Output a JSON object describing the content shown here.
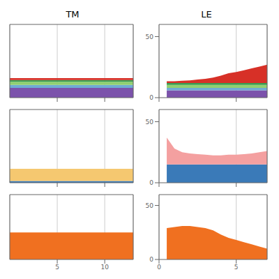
{
  "chart_data": [
    {
      "type": "area",
      "stacked": true,
      "title": "TM",
      "x": [
        0,
        1,
        2,
        3,
        4,
        5,
        6,
        7,
        8,
        9,
        10,
        11,
        12,
        13
      ],
      "series": [
        {
          "color": "#7b52ab",
          "values": [
            8,
            8,
            8,
            8,
            8,
            8,
            8,
            8,
            8,
            8,
            8,
            8,
            8,
            8
          ]
        },
        {
          "color": "#6fabd4",
          "values": [
            2.5,
            2.5,
            2.5,
            2.5,
            2.5,
            2.5,
            2.5,
            2.5,
            2.5,
            2.5,
            2.5,
            2.5,
            2.5,
            2.5
          ]
        },
        {
          "color": "#90d070",
          "values": [
            2.5,
            2.5,
            2.5,
            2.5,
            2.5,
            2.5,
            2.5,
            2.5,
            2.5,
            2.5,
            2.5,
            2.5,
            2.5,
            2.5
          ]
        },
        {
          "color": "#3a9c50",
          "values": [
            1.5,
            1.5,
            1.5,
            1.5,
            1.5,
            1.5,
            1.5,
            1.5,
            1.5,
            1.5,
            1.5,
            1.5,
            1.5,
            1.5
          ]
        },
        {
          "color": "#d73027",
          "values": [
            1.5,
            1.5,
            1.5,
            1.5,
            1.5,
            1.5,
            1.5,
            1.5,
            1.5,
            1.5,
            1.5,
            1.5,
            1.5,
            1.5
          ]
        }
      ],
      "xlim": [
        0,
        13
      ],
      "ylim": [
        0,
        60
      ],
      "xticks": [
        5,
        10
      ],
      "yticks": [],
      "grid": "x",
      "tick_labels": false
    },
    {
      "type": "area",
      "stacked": true,
      "title": "LE",
      "x": [
        0.5,
        1,
        1.5,
        2,
        2.5,
        3,
        3.5,
        4,
        4.5,
        5,
        5.5,
        6,
        6.5,
        7
      ],
      "series": [
        {
          "color": "#7b52ab",
          "values": [
            6,
            6,
            6,
            6,
            6,
            6,
            6,
            6,
            6,
            6,
            6,
            6,
            6,
            6
          ]
        },
        {
          "color": "#6fabd4",
          "values": [
            2,
            2,
            2,
            2,
            2,
            2,
            2,
            2,
            2,
            2,
            2,
            2,
            2,
            2
          ]
        },
        {
          "color": "#90d070",
          "values": [
            2.5,
            2.5,
            2.5,
            2.5,
            2.5,
            2.5,
            2.5,
            2.5,
            2.5,
            2.5,
            2.5,
            2.5,
            2.5,
            2.5
          ]
        },
        {
          "color": "#3a9c50",
          "values": [
            1.5,
            1.5,
            1.5,
            1.5,
            1.5,
            1.5,
            1.5,
            1.5,
            1.5,
            1.5,
            1.5,
            1.5,
            1.5,
            1.5
          ]
        },
        {
          "color": "#d73027",
          "values": [
            1.5,
            1.5,
            1.8,
            2.2,
            2.8,
            3.5,
            4.5,
            6,
            8,
            9,
            10.5,
            12,
            13.5,
            15
          ]
        }
      ],
      "xlim": [
        0,
        7
      ],
      "ylim": [
        0,
        60
      ],
      "xticks": [
        0,
        5
      ],
      "yticks": [
        0,
        50
      ],
      "grid": "x",
      "tick_labels": "y"
    },
    {
      "type": "area",
      "stacked": true,
      "x": [
        0,
        1,
        2,
        3,
        4,
        5,
        6,
        7,
        8,
        9,
        10,
        11,
        12,
        13
      ],
      "series": [
        {
          "color": "#3a7ab8",
          "values": [
            1.5,
            1.5,
            1.5,
            1.5,
            1.5,
            1.5,
            1.5,
            1.5,
            1.5,
            1.5,
            1.5,
            1.5,
            1.5,
            1.5
          ]
        },
        {
          "color": "#f5c870",
          "values": [
            10,
            10,
            10,
            10,
            10,
            10,
            10,
            10,
            10,
            10,
            10,
            10,
            10,
            10
          ]
        }
      ],
      "xlim": [
        0,
        13
      ],
      "ylim": [
        0,
        60
      ],
      "xticks": [
        5,
        10
      ],
      "yticks": [],
      "grid": "x",
      "tick_labels": false
    },
    {
      "type": "area",
      "stacked": true,
      "x": [
        0.5,
        1,
        1.5,
        2,
        2.5,
        3,
        3.5,
        4,
        4.5,
        5,
        5.5,
        6,
        6.5,
        7
      ],
      "series": [
        {
          "color": "#3a7ab8",
          "values": [
            15,
            15,
            15,
            15,
            15,
            15,
            15,
            15,
            15,
            15,
            15,
            15,
            15,
            15
          ]
        },
        {
          "color": "#f4a0a0",
          "values": [
            22,
            13,
            10,
            9,
            8.5,
            8,
            7.5,
            7.5,
            8,
            8,
            8.5,
            9,
            10,
            11
          ]
        }
      ],
      "xlim": [
        0,
        7
      ],
      "ylim": [
        0,
        60
      ],
      "xticks": [
        0,
        5
      ],
      "yticks": [
        0,
        50
      ],
      "grid": "x",
      "tick_labels": "y"
    },
    {
      "type": "area",
      "stacked": true,
      "x": [
        0,
        1,
        2,
        3,
        4,
        5,
        6,
        7,
        8,
        9,
        10,
        11,
        12,
        13
      ],
      "series": [
        {
          "color": "#f07020",
          "values": [
            25,
            25,
            25,
            25,
            25,
            25,
            25,
            25,
            25,
            25,
            25,
            25,
            25,
            25
          ]
        }
      ],
      "xlim": [
        0,
        13
      ],
      "ylim": [
        0,
        60
      ],
      "xticks": [
        5,
        10
      ],
      "yticks": [],
      "grid": "x",
      "tick_labels": "x"
    },
    {
      "type": "area",
      "stacked": true,
      "x": [
        0.5,
        1,
        1.5,
        2,
        2.5,
        3,
        3.5,
        4,
        4.5,
        5,
        5.5,
        6,
        6.5,
        7
      ],
      "series": [
        {
          "color": "#f07020",
          "values": [
            29,
            30,
            31,
            31,
            30,
            29,
            27,
            23,
            20,
            18,
            16,
            14,
            12,
            10
          ]
        }
      ],
      "xlim": [
        0,
        7
      ],
      "ylim": [
        0,
        60
      ],
      "xticks": [
        0,
        5
      ],
      "yticks": [
        0,
        50
      ],
      "grid": "x",
      "tick_labels": true
    }
  ]
}
